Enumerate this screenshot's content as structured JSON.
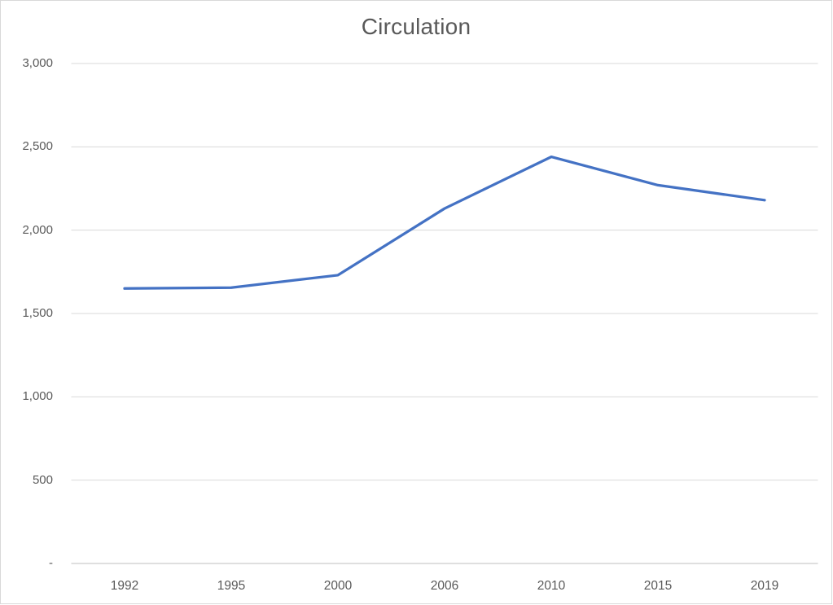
{
  "chart_data": {
    "type": "line",
    "title": "Circulation",
    "categories": [
      "1992",
      "1995",
      "2000",
      "2006",
      "2010",
      "2015",
      "2019"
    ],
    "series": [
      {
        "name": "Circulation",
        "values": [
          1650,
          1655,
          1730,
          2130,
          2440,
          2270,
          2180
        ]
      }
    ],
    "xlabel": "",
    "ylabel": "",
    "ylim": [
      0,
      3000
    ],
    "ytick_interval": 500,
    "ytick_labels": [
      "-",
      "500",
      "1,000",
      "1,500",
      "2,000",
      "2,500",
      "3,000"
    ],
    "grid": true,
    "legend_position": "none",
    "colors": {
      "line": "#4472C4",
      "gridline": "#D9D9D9",
      "axis_line": "#BFBFBF",
      "text": "#595959",
      "background": "#FFFFFF",
      "border": "#D9D9D9"
    }
  }
}
